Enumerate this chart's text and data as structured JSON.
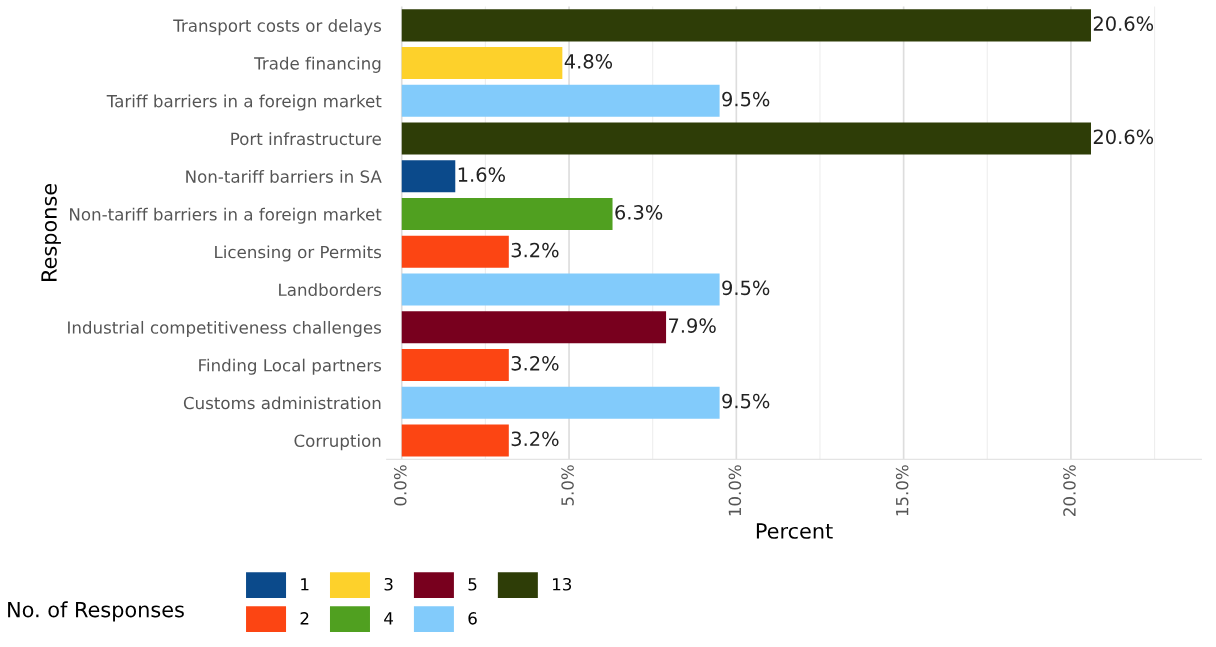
{
  "chart_data": {
    "type": "bar",
    "orientation": "horizontal",
    "xlabel": "Percent",
    "ylabel": "Response",
    "legend_title": "No. of Responses",
    "legend": "bottom",
    "grid": "x",
    "categories": [
      "Transport costs or delays",
      "Trade financing",
      "Tariff barriers in a foreign market",
      "Port infrastructure",
      "Non-tariff barriers in SA",
      "Non-tariff barriers in a foreign market",
      "Licensing or Permits",
      "Landborders",
      "Industrial competitiveness challenges",
      "Finding Local partners",
      "Customs administration",
      "Corruption"
    ],
    "xlim": [
      -0.45,
      23.9
    ],
    "xticks": [
      {
        "value": 0,
        "label": "0.0%"
      },
      {
        "value": 5,
        "label": "5.0%"
      },
      {
        "value": 10,
        "label": "10.0%"
      },
      {
        "value": 15,
        "label": "15.0%"
      },
      {
        "value": 20,
        "label": "20.0%"
      }
    ],
    "series": [
      {
        "name": "1",
        "color": "#0b4a8b",
        "values": [
          null,
          null,
          null,
          null,
          1.6,
          null,
          null,
          null,
          null,
          null,
          null,
          null
        ],
        "value_labels": [
          null,
          null,
          null,
          null,
          "1.6%",
          null,
          null,
          null,
          null,
          null,
          null,
          null
        ]
      },
      {
        "name": "2",
        "color": "#fc4513",
        "values": [
          null,
          null,
          null,
          null,
          null,
          null,
          3.2,
          null,
          null,
          3.2,
          null,
          3.2
        ],
        "value_labels": [
          null,
          null,
          null,
          null,
          null,
          null,
          "3.2%",
          null,
          null,
          "3.2%",
          null,
          "3.2%"
        ]
      },
      {
        "name": "3",
        "color": "#fdd12b",
        "values": [
          null,
          4.8,
          null,
          null,
          null,
          null,
          null,
          null,
          null,
          null,
          null,
          null
        ],
        "value_labels": [
          null,
          "4.8%",
          null,
          null,
          null,
          null,
          null,
          null,
          null,
          null,
          null,
          null
        ]
      },
      {
        "name": "4",
        "color": "#50a020",
        "values": [
          null,
          null,
          null,
          null,
          null,
          6.3,
          null,
          null,
          null,
          null,
          null,
          null
        ],
        "value_labels": [
          null,
          null,
          null,
          null,
          null,
          "6.3%",
          null,
          null,
          null,
          null,
          null,
          null
        ]
      },
      {
        "name": "5",
        "color": "#78001e",
        "values": [
          null,
          null,
          null,
          null,
          null,
          null,
          null,
          null,
          7.9,
          null,
          null,
          null
        ],
        "value_labels": [
          null,
          null,
          null,
          null,
          null,
          null,
          null,
          null,
          "7.9%",
          null,
          null,
          null
        ]
      },
      {
        "name": "6",
        "color": "#82cbfb",
        "values": [
          null,
          null,
          9.5,
          null,
          null,
          null,
          null,
          9.5,
          null,
          null,
          9.5,
          null
        ],
        "value_labels": [
          null,
          null,
          "9.5%",
          null,
          null,
          null,
          null,
          "9.5%",
          null,
          null,
          "9.5%",
          null
        ]
      },
      {
        "name": "13",
        "color": "#2e3d07",
        "values": [
          20.6,
          null,
          null,
          20.6,
          null,
          null,
          null,
          null,
          null,
          null,
          null,
          null
        ],
        "value_labels": [
          "20.6%",
          null,
          null,
          "20.6%",
          null,
          null,
          null,
          null,
          null,
          null,
          null,
          null
        ]
      }
    ]
  }
}
